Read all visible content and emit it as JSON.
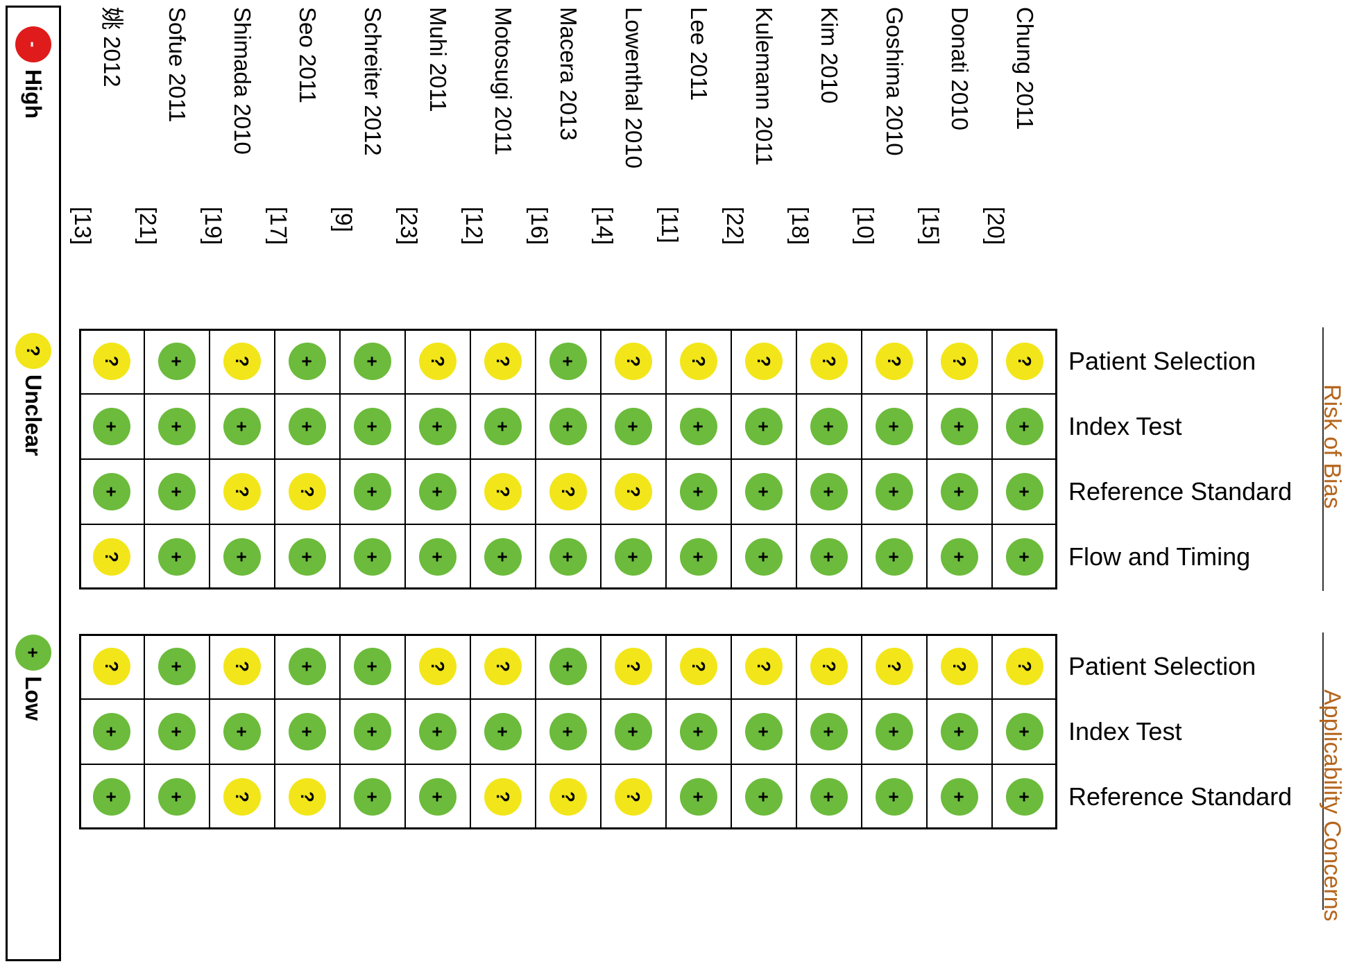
{
  "legend": {
    "high": {
      "label": "High",
      "symbol": "-"
    },
    "unclear": {
      "label": "Unclear",
      "symbol": "?"
    },
    "low": {
      "label": "Low",
      "symbol": "+"
    }
  },
  "studies": [
    {
      "name": "姚 2012",
      "ref": "[13]"
    },
    {
      "name": "Sofue 2011",
      "ref": "[21]"
    },
    {
      "name": "Shimada 2010",
      "ref": "[19]"
    },
    {
      "name": "Seo 2011",
      "ref": "[17]"
    },
    {
      "name": "Schreiter 2012",
      "ref": "[9]"
    },
    {
      "name": "Muhi 2011",
      "ref": "[23]"
    },
    {
      "name": "Motosugi 2011",
      "ref": "[12]"
    },
    {
      "name": "Macera 2013",
      "ref": "[16]"
    },
    {
      "name": "Lowenthal 2010",
      "ref": "[14]"
    },
    {
      "name": "Lee 2011",
      "ref": "[11]"
    },
    {
      "name": "Kulemann 2011",
      "ref": "[22]"
    },
    {
      "name": "Kim 2010",
      "ref": "[18]"
    },
    {
      "name": "Goshima 2010",
      "ref": "[10]"
    },
    {
      "name": "Donati 2010",
      "ref": "[15]"
    },
    {
      "name": "Chung 2011",
      "ref": "[20]"
    }
  ],
  "groups": [
    {
      "label": "Risk of Bias",
      "rows": [
        {
          "label": "Patient Selection",
          "values": [
            "U",
            "L",
            "U",
            "L",
            "L",
            "U",
            "U",
            "L",
            "U",
            "U",
            "U",
            "U",
            "U",
            "U",
            "U"
          ]
        },
        {
          "label": "Index Test",
          "values": [
            "L",
            "L",
            "L",
            "L",
            "L",
            "L",
            "L",
            "L",
            "L",
            "L",
            "L",
            "L",
            "L",
            "L",
            "L"
          ]
        },
        {
          "label": "Reference Standard",
          "values": [
            "L",
            "L",
            "U",
            "U",
            "L",
            "L",
            "U",
            "U",
            "U",
            "L",
            "L",
            "L",
            "L",
            "L",
            "L"
          ]
        },
        {
          "label": "Flow and Timing",
          "values": [
            "U",
            "L",
            "L",
            "L",
            "L",
            "L",
            "L",
            "L",
            "L",
            "L",
            "L",
            "L",
            "L",
            "L",
            "L"
          ]
        }
      ]
    },
    {
      "label": "Applicability Concerns",
      "rows": [
        {
          "label": "Patient Selection",
          "values": [
            "U",
            "L",
            "U",
            "L",
            "L",
            "U",
            "U",
            "L",
            "U",
            "U",
            "U",
            "U",
            "U",
            "U",
            "U"
          ]
        },
        {
          "label": "Index Test",
          "values": [
            "L",
            "L",
            "L",
            "L",
            "L",
            "L",
            "L",
            "L",
            "L",
            "L",
            "L",
            "L",
            "L",
            "L",
            "L"
          ]
        },
        {
          "label": "Reference Standard",
          "values": [
            "L",
            "L",
            "U",
            "U",
            "L",
            "L",
            "U",
            "U",
            "U",
            "L",
            "L",
            "L",
            "L",
            "L",
            "L"
          ]
        }
      ]
    }
  ],
  "colors": {
    "low": "#6cbb3c",
    "unclear": "#f2e61a",
    "high": "#e01b1b"
  }
}
